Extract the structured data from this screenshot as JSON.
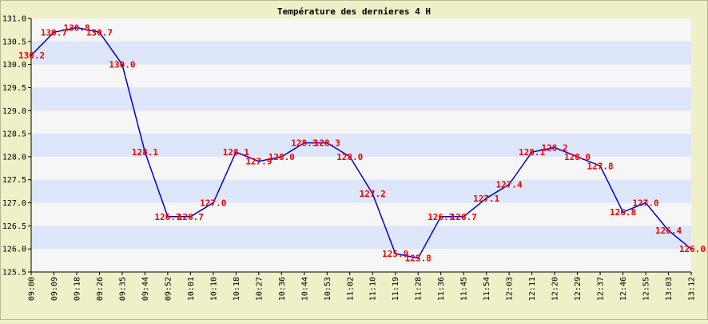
{
  "chart_data": {
    "type": "line",
    "title": "Température des dernieres 4 H",
    "xlabel": "",
    "ylabel": "",
    "ylim": [
      125.5,
      131.0
    ],
    "yticks": [
      "125.5",
      "126.0",
      "126.5",
      "127.0",
      "127.5",
      "128.0",
      "128.5",
      "129.0",
      "129.5",
      "130.0",
      "130.5",
      "131.0"
    ],
    "grid": true,
    "legend": "none",
    "x": [
      "09:00",
      "09:09",
      "09:18",
      "09:26",
      "09:35",
      "09:44",
      "09:52",
      "10:01",
      "10:10",
      "10:18",
      "10:27",
      "10:36",
      "10:44",
      "10:53",
      "11:02",
      "11:10",
      "11:19",
      "11:28",
      "11:36",
      "11:45",
      "11:54",
      "12:03",
      "12:11",
      "12:20",
      "12:29",
      "12:37",
      "12:46",
      "12:55",
      "13:03",
      "13:12"
    ],
    "series": [
      {
        "name": "",
        "values": [
          130.2,
          130.7,
          130.8,
          130.7,
          130.0,
          128.1,
          126.7,
          126.7,
          127.0,
          128.1,
          127.9,
          128.0,
          128.3,
          128.3,
          128.0,
          127.2,
          125.9,
          125.8,
          126.7,
          126.7,
          127.1,
          127.4,
          128.1,
          128.2,
          128.0,
          127.8,
          126.8,
          127.0,
          126.4,
          126.0
        ],
        "labels": [
          "130.2",
          "130.7",
          "130.8",
          "130.7",
          "130.0",
          "128.1",
          "126.7",
          "126.7",
          "127.0",
          "128.1",
          "127.9",
          "128.0",
          "128.3",
          "128.3",
          "128.0",
          "127.2",
          "125.9",
          "125.8",
          "126.7",
          "126.7",
          "127.1",
          "127.4",
          "128.1",
          "128.2",
          "128.0",
          "127.8",
          "126.8",
          "127.0",
          "126.4",
          "126.0"
        ]
      }
    ]
  },
  "colors": {
    "background": "#efefc8",
    "plot_band_light": "#f6f6f6",
    "plot_band_blue": "#dde6fb",
    "line": "#0000cc",
    "labels": "#ee0000",
    "text": "#000000"
  }
}
